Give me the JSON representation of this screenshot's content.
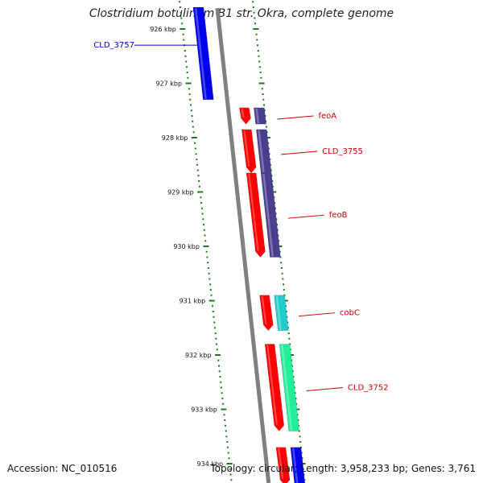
{
  "header": {
    "title": "Clostridium botulinum B1 str. Okra, complete genome"
  },
  "footer": {
    "accession": "Accession: NC_010516",
    "summary": "Topology: circular; Length: 3,958,233 bp; Genes: 3,761"
  },
  "ruler": {
    "ticks": [
      "926 kbp",
      "927 kbp",
      "928 kbp",
      "929 kbp",
      "930 kbp",
      "931 kbp",
      "932 kbp",
      "933 kbp",
      "934 kbp"
    ]
  },
  "genes": [
    {
      "name": "CLD_3757",
      "label_color": "#0000cc",
      "fill": "#0000ee",
      "strand": "outer",
      "start_kbp": 925.6,
      "end_kbp": 927.3
    },
    {
      "name": "feoA",
      "label_color": "#cc0000",
      "fill": "#4a3f8f",
      "strand": "plus",
      "start_kbp": 927.45,
      "end_kbp": 927.75
    },
    {
      "name": "CLD_3755",
      "label_color": "#cc0000",
      "fill": "#4a3f8f",
      "strand": "plus",
      "start_kbp": 927.85,
      "end_kbp": 928.65
    },
    {
      "name": "feoB",
      "label_color": "#cc0000",
      "fill": "#4a3f8f",
      "strand": "plus",
      "start_kbp": 928.65,
      "end_kbp": 930.2
    },
    {
      "name": "cobC",
      "label_color": "#cc0000",
      "fill": "#22cccc",
      "strand": "plus",
      "start_kbp": 930.9,
      "end_kbp": 931.55
    },
    {
      "name": "CLD_3752",
      "label_color": "#cc0000",
      "fill": "#22ee99",
      "strand": "plus",
      "start_kbp": 931.8,
      "end_kbp": 933.4
    },
    {
      "name": "",
      "label_color": "#cc0000",
      "fill": "#0000ee",
      "strand": "plus",
      "start_kbp": 933.7,
      "end_kbp": 934.4
    }
  ],
  "red_features": [
    {
      "start_kbp": 927.45,
      "end_kbp": 927.75
    },
    {
      "start_kbp": 927.85,
      "end_kbp": 928.65
    },
    {
      "start_kbp": 928.65,
      "end_kbp": 930.2
    },
    {
      "start_kbp": 930.9,
      "end_kbp": 931.55
    },
    {
      "start_kbp": 931.8,
      "end_kbp": 933.4
    },
    {
      "start_kbp": 933.7,
      "end_kbp": 934.4
    }
  ],
  "colors": {
    "backbone": "#808080",
    "red_feature": "#ff0000",
    "tick": "#1a7a1a",
    "label_line_blue": "#0000cc",
    "label_line_red": "#cc0000"
  }
}
